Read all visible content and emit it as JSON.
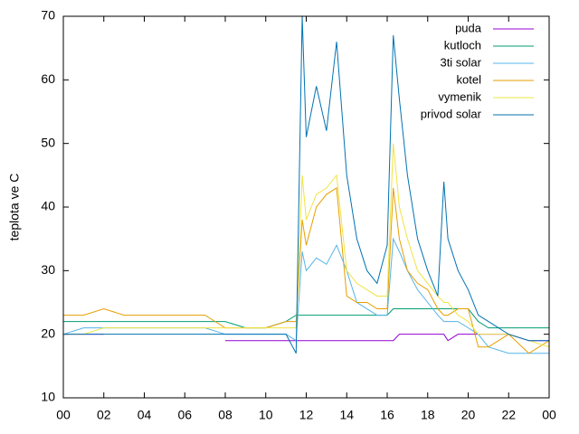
{
  "chart_data": {
    "type": "line",
    "y_label": "teplota ve C",
    "x": [
      0,
      1,
      2,
      3,
      4,
      5,
      6,
      7,
      8,
      9,
      10,
      11,
      11.5,
      11.8,
      12,
      12.5,
      13,
      13.5,
      14,
      14.5,
      15,
      15.5,
      16,
      16.3,
      16.6,
      17,
      17.5,
      18,
      18.5,
      18.8,
      19,
      19.5,
      20,
      20.5,
      21,
      22,
      23,
      24
    ],
    "series": [
      {
        "name": "puda",
        "color": "#9400d3",
        "values": [
          20,
          20,
          20,
          null,
          null,
          null,
          null,
          null,
          19,
          19,
          19,
          19,
          19,
          19,
          19,
          19,
          19,
          19,
          19,
          19,
          19,
          19,
          19,
          19,
          20,
          20,
          20,
          20,
          20,
          20,
          19,
          20,
          20,
          20,
          20,
          20,
          19,
          19
        ]
      },
      {
        "name": "kutloch",
        "color": "#009e73",
        "values": [
          22,
          22,
          22,
          22,
          22,
          22,
          22,
          22,
          22,
          21,
          21,
          22,
          23,
          23,
          23,
          23,
          23,
          23,
          23,
          23,
          23,
          23,
          23,
          24,
          24,
          24,
          24,
          24,
          24,
          24,
          24,
          24,
          24,
          22,
          21,
          21,
          21,
          21
        ]
      },
      {
        "name": "3ti solar",
        "color": "#56b4e9",
        "values": [
          20,
          21,
          21,
          21,
          21,
          21,
          21,
          21,
          20,
          20,
          20,
          20,
          19,
          33,
          30,
          32,
          31,
          34,
          30,
          25,
          24,
          23,
          23,
          35,
          33,
          30,
          27,
          25,
          23,
          22,
          22,
          22,
          21,
          20,
          18,
          17,
          17,
          17
        ]
      },
      {
        "name": "kotel",
        "color": "#e69f00",
        "values": [
          23,
          23,
          24,
          23,
          23,
          23,
          23,
          23,
          21,
          21,
          21,
          22,
          22,
          38,
          34,
          40,
          42,
          43,
          26,
          25,
          25,
          24,
          24,
          43,
          35,
          30,
          28,
          27,
          24,
          23,
          23,
          24,
          24,
          18,
          18,
          20,
          17,
          19
        ]
      },
      {
        "name": "vymenik",
        "color": "#f0e442",
        "values": [
          20,
          20,
          21,
          21,
          21,
          21,
          21,
          21,
          21,
          21,
          21,
          21,
          21,
          45,
          38,
          42,
          43,
          45,
          30,
          28,
          27,
          26,
          26,
          50,
          40,
          35,
          30,
          28,
          26,
          25,
          25,
          23,
          22,
          20,
          20,
          20,
          19,
          18
        ]
      },
      {
        "name": "privod solar",
        "color": "#0072b2",
        "values": [
          20,
          20,
          20,
          20,
          20,
          20,
          20,
          20,
          20,
          20,
          20,
          20,
          17,
          70,
          51,
          59,
          52,
          66,
          45,
          35,
          30,
          28,
          34,
          67,
          57,
          45,
          35,
          30,
          26,
          44,
          35,
          30,
          27,
          23,
          22,
          20,
          19,
          19
        ]
      }
    ],
    "xlim": [
      0,
      24
    ],
    "xticks": [
      {
        "value": 0,
        "label": "00"
      },
      {
        "value": 2,
        "label": "02"
      },
      {
        "value": 4,
        "label": "04"
      },
      {
        "value": 6,
        "label": "06"
      },
      {
        "value": 8,
        "label": "08"
      },
      10,
      12,
      14,
      16,
      18,
      20,
      22,
      {
        "value": 24,
        "label": "00"
      }
    ],
    "ylim": [
      10,
      70
    ],
    "yticks": [
      10,
      20,
      30,
      40,
      50,
      60,
      70
    ],
    "legend": "top-right"
  }
}
